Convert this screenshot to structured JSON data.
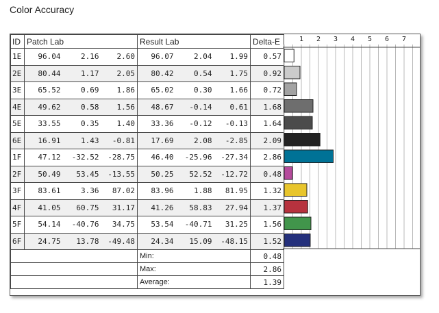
{
  "title": "Color Accuracy",
  "table": {
    "headers": {
      "id": "ID",
      "patch": "Patch Lab",
      "result": "Result Lab",
      "delta": "Delta-E"
    },
    "rows": [
      {
        "id": "1E",
        "patch": [
          "96.04",
          "2.16",
          "2.60"
        ],
        "result": [
          "96.07",
          "2.04",
          "1.99"
        ],
        "delta": "0.57"
      },
      {
        "id": "2E",
        "patch": [
          "80.44",
          "1.17",
          "2.05"
        ],
        "result": [
          "80.42",
          "0.54",
          "1.75"
        ],
        "delta": "0.92"
      },
      {
        "id": "3E",
        "patch": [
          "65.52",
          "0.69",
          "1.86"
        ],
        "result": [
          "65.02",
          "0.30",
          "1.66"
        ],
        "delta": "0.72"
      },
      {
        "id": "4E",
        "patch": [
          "49.62",
          "0.58",
          "1.56"
        ],
        "result": [
          "48.67",
          "-0.14",
          "0.61"
        ],
        "delta": "1.68"
      },
      {
        "id": "5E",
        "patch": [
          "33.55",
          "0.35",
          "1.40"
        ],
        "result": [
          "33.36",
          "-0.12",
          "-0.13"
        ],
        "delta": "1.64"
      },
      {
        "id": "6E",
        "patch": [
          "16.91",
          "1.43",
          "-0.81"
        ],
        "result": [
          "17.69",
          "2.08",
          "-2.85"
        ],
        "delta": "2.09"
      },
      {
        "id": "1F",
        "patch": [
          "47.12",
          "-32.52",
          "-28.75"
        ],
        "result": [
          "46.40",
          "-25.96",
          "-27.34"
        ],
        "delta": "2.86"
      },
      {
        "id": "2F",
        "patch": [
          "50.49",
          "53.45",
          "-13.55"
        ],
        "result": [
          "50.25",
          "52.52",
          "-12.72"
        ],
        "delta": "0.48"
      },
      {
        "id": "3F",
        "patch": [
          "83.61",
          "3.36",
          "87.02"
        ],
        "result": [
          "83.96",
          "1.88",
          "81.95"
        ],
        "delta": "1.32"
      },
      {
        "id": "4F",
        "patch": [
          "41.05",
          "60.75",
          "31.17"
        ],
        "result": [
          "41.26",
          "58.83",
          "27.94"
        ],
        "delta": "1.37"
      },
      {
        "id": "5F",
        "patch": [
          "54.14",
          "-40.76",
          "34.75"
        ],
        "result": [
          "53.54",
          "-40.71",
          "31.25"
        ],
        "delta": "1.56"
      },
      {
        "id": "6F",
        "patch": [
          "24.75",
          "13.78",
          "-49.48"
        ],
        "result": [
          "24.34",
          "15.09",
          "-48.15"
        ],
        "delta": "1.52"
      }
    ],
    "summary": [
      {
        "label": "Min:",
        "value": "0.48"
      },
      {
        "label": "Max:",
        "value": "2.86"
      },
      {
        "label": "Average:",
        "value": "1.39"
      }
    ]
  },
  "chart_data": {
    "type": "bar",
    "orientation": "horizontal",
    "categories": [
      "1E",
      "2E",
      "3E",
      "4E",
      "5E",
      "6E",
      "1F",
      "2F",
      "3F",
      "4F",
      "5F",
      "6F"
    ],
    "values": [
      0.57,
      0.92,
      0.72,
      1.68,
      1.64,
      2.09,
      2.86,
      0.48,
      1.32,
      1.37,
      1.56,
      1.52
    ],
    "colors": [
      "#ffffff",
      "#cbcbcb",
      "#a3a3a3",
      "#6e6e6e",
      "#4b4b4b",
      "#232323",
      "#007296",
      "#b54b9c",
      "#e8c52c",
      "#b7323e",
      "#41954b",
      "#24307c"
    ],
    "xticks": [
      "1",
      "2",
      "3",
      "4",
      "5",
      "6",
      "7"
    ],
    "xlim": [
      0,
      7.5
    ],
    "grid": true
  }
}
